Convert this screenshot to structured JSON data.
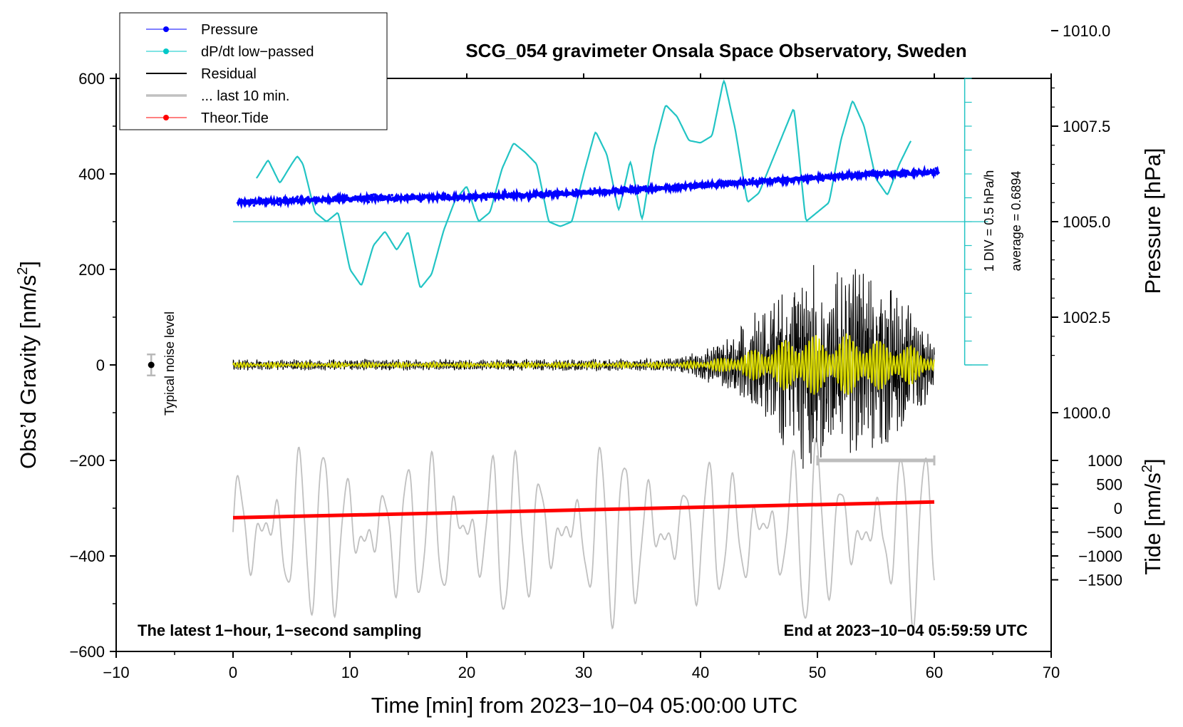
{
  "chart_data": {
    "type": "line",
    "title": "SCG_054 gravimeter Onsala Space Observatory, Sweden",
    "xlabel": "Time [min] from 2023−10−04 05:00:00 UTC",
    "ylabel_left": "Obs’d Gravity [nm/s",
    "ylabel_left_unit_power": "2",
    "ylabel_left_close": "]",
    "ylabel_right_top": "Pressure [hPa]",
    "ylabel_right_bottom": "Tide [nm/s",
    "ylabel_right_bottom_unit_power": "2",
    "ylabel_right_bottom_close": "]",
    "xlim": [
      -10,
      70
    ],
    "ylim": [
      -600,
      600
    ],
    "x_ticks": [
      -10,
      0,
      10,
      20,
      30,
      40,
      50,
      60,
      70
    ],
    "x_tick_labels": [
      "−10",
      "0",
      "10",
      "20",
      "30",
      "40",
      "50",
      "60",
      "70"
    ],
    "y_ticks": [
      -600,
      -400,
      -200,
      0,
      200,
      400,
      600
    ],
    "y_tick_labels": [
      "−600",
      "−400",
      "−200",
      "0",
      "200",
      "400",
      "600"
    ],
    "pressure_axis": {
      "ticks": [
        1000.0,
        1002.5,
        1005.0,
        1007.5,
        1010.0
      ],
      "tick_labels": [
        "1000.0",
        "1002.5",
        "1005.0",
        "1007.5",
        "1010.0"
      ],
      "ref_hpa": 1005.0,
      "hpa_per_gravity": 0.0125
    },
    "tide_axis": {
      "ticks": [
        -1500,
        -1000,
        -500,
        0,
        500,
        1000
      ],
      "tick_labels": [
        "−1500",
        "−1000",
        "−500",
        "0",
        "500",
        "1000"
      ],
      "gravity_at_zero": -300,
      "gravity_per_tide": 0.1
    },
    "dpdt_axis": {
      "baseline_gravity": 0,
      "top_gravity": 600,
      "divisions": 12,
      "label": "1 DIV = 0.5 hPa/h",
      "average_label": "average = 0.6894",
      "average_line_gravity": 300
    },
    "legend": [
      {
        "label": "Pressure",
        "color": "#0000ff",
        "marker": true
      },
      {
        "label": "dP/dt low−passed",
        "color": "#00c8c8",
        "marker": true
      },
      {
        "label": "Residual",
        "color": "#000000",
        "marker": false
      },
      {
        "label": "... last 10 min.",
        "color": "#c0c0c0",
        "marker": false
      },
      {
        "label": "Theor.Tide",
        "color": "#ff0000",
        "marker": true
      }
    ],
    "colors": {
      "pressure": "#0000ff",
      "dpdt": "#22c4c4",
      "residual": "#000000",
      "residual_lowpass": "#d8d800",
      "last10": "#c0c0c0",
      "tide": "#ff0000"
    },
    "noise_label": "Typical noise level",
    "noise_bar": {
      "x": -7,
      "y": 0,
      "half_range": 22
    },
    "last10_bar": {
      "x_start": 50,
      "x_end": 60,
      "y": -200
    },
    "footer_left": "The latest 1−hour, 1−second sampling",
    "footer_right": "End at 2023−10−04 05:59:59 UTC",
    "series": [
      {
        "name": "Pressure",
        "unit": "hPa",
        "x": [
          0,
          5,
          10,
          15,
          20,
          25,
          30,
          35,
          40,
          45,
          50,
          55,
          60
        ],
        "values": [
          1005.5,
          1005.55,
          1005.6,
          1005.62,
          1005.65,
          1005.7,
          1005.75,
          1005.85,
          1005.95,
          1006.05,
          1006.15,
          1006.25,
          1006.3
        ]
      },
      {
        "name": "dP/dt low−passed",
        "unit": "nm/s2 display",
        "x": [
          2,
          3,
          4,
          5,
          5.5,
          6,
          7,
          8,
          9,
          10,
          11,
          12,
          13,
          14,
          15,
          16,
          17,
          18,
          19,
          20,
          21,
          22,
          23,
          24,
          25,
          26,
          27,
          28,
          29,
          30,
          31,
          32,
          33,
          34,
          35,
          36,
          37,
          38,
          39,
          40,
          41,
          42,
          43,
          44,
          45,
          46,
          47,
          48,
          49,
          50,
          51,
          52,
          53,
          54,
          55,
          56,
          57,
          58
        ],
        "values": [
          390,
          430,
          380,
          420,
          438,
          420,
          320,
          300,
          320,
          200,
          165,
          250,
          280,
          240,
          280,
          160,
          190,
          280,
          345,
          375,
          300,
          320,
          410,
          465,
          445,
          420,
          300,
          290,
          300,
          400,
          490,
          440,
          320,
          430,
          300,
          450,
          545,
          520,
          470,
          465,
          480,
          600,
          490,
          340,
          360,
          420,
          480,
          540,
          300,
          320,
          340,
          470,
          555,
          500,
          390,
          355,
          420,
          470
        ]
      },
      {
        "name": "Theor.Tide",
        "unit": "nm/s2",
        "x": [
          0,
          60
        ],
        "values": [
          -200,
          130
        ]
      },
      {
        "name": "Residual",
        "unit": "nm/s2",
        "x": [
          0,
          20,
          38,
          42,
          45,
          48,
          49,
          51,
          52,
          55,
          58,
          60
        ],
        "envelope": [
          12,
          12,
          14,
          50,
          120,
          200,
          240,
          170,
          230,
          180,
          140,
          60
        ]
      },
      {
        "name": "... last 10 min.",
        "unit": "nm/s2",
        "x": [
          0,
          60
        ],
        "center": -350,
        "envelope_note": "oscillation ±100 to ±220"
      }
    ]
  }
}
